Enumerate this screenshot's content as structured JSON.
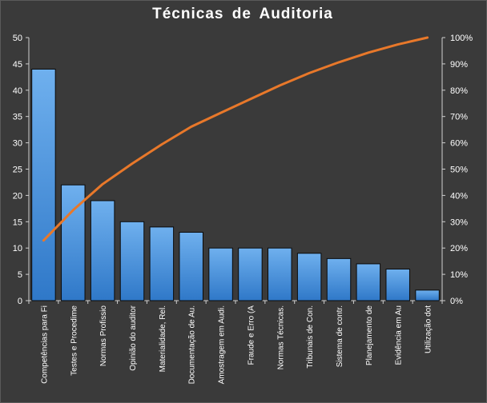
{
  "chart_data": {
    "type": "bar",
    "title": "Técnicas  de  Auditoria",
    "xlabel": "",
    "ylabel": "",
    "categories": [
      "Competências para Fi",
      "Testes e Procedime",
      "Normas Profissio",
      "Opinião do auditor",
      "Materialidade, Rel.",
      "Documentação de Au.",
      "Amostragem em Audi.",
      "Fraude e Erro (A",
      "Normas Técnicas.",
      "Tribunais de Con.",
      "Sistema de contr.",
      "Planejamento de",
      "Evidência em Au",
      "Utilização dot"
    ],
    "series": [
      {
        "type": "bar",
        "values": [
          44,
          22,
          19,
          15,
          14,
          13,
          10,
          10,
          10,
          9,
          8,
          7,
          6,
          2
        ]
      },
      {
        "type": "line",
        "axis": "secondary",
        "values": [
          22.9,
          34.4,
          44.3,
          52.1,
          59.4,
          66.1,
          71.4,
          76.6,
          81.8,
          86.5,
          90.6,
          94.3,
          97.4,
          100
        ]
      }
    ],
    "ylim": [
      0,
      50
    ],
    "yticks": [
      "0",
      "5",
      "10",
      "15",
      "20",
      "25",
      "30",
      "35",
      "40",
      "45",
      "50"
    ],
    "y2lim": [
      0,
      100
    ],
    "y2ticks": [
      "0%",
      "10%",
      "20%",
      "30%",
      "40%",
      "50%",
      "60%",
      "70%",
      "80%",
      "90%",
      "100%"
    ],
    "grid": false,
    "legend": "none",
    "colors": {
      "background": "#3a3a3a",
      "bar_top": "#6fb0ee",
      "bar_bottom": "#2f78c8",
      "bar_border": "#0a0a0a",
      "line": "#e8782a",
      "axis": "#d0d0d0",
      "text": "#ffffff"
    }
  }
}
